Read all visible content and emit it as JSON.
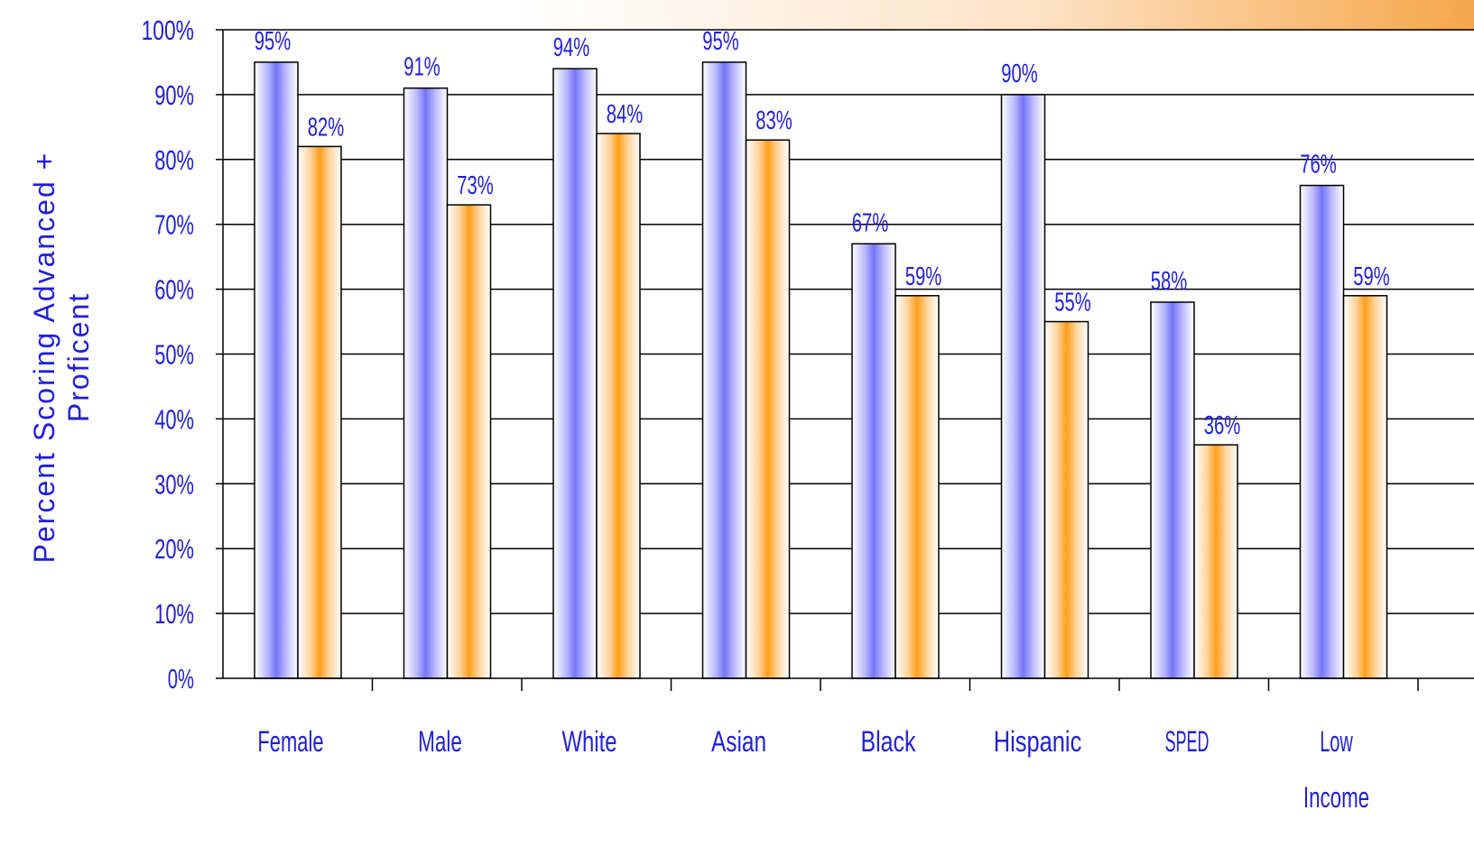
{
  "chart_data": {
    "type": "bar",
    "ylabel": "Percent Scoring Advanced + Proficent",
    "ylabel_lines": [
      "Percent Scoring Advanced +",
      "Proficent"
    ],
    "ylim": [
      0,
      100
    ],
    "yticks": [
      "0%",
      "10%",
      "20%",
      "30%",
      "40%",
      "50%",
      "60%",
      "70%",
      "80%",
      "90%",
      "100%"
    ],
    "grid": true,
    "categories": [
      [
        "Female"
      ],
      [
        "Male"
      ],
      [
        "White"
      ],
      [
        "Asian"
      ],
      [
        "Black"
      ],
      [
        "Hispanic"
      ],
      [
        "SPED"
      ],
      [
        "Low",
        "Income"
      ]
    ],
    "series": [
      {
        "values": [
          95,
          91,
          94,
          95,
          67,
          90,
          58,
          76
        ],
        "labels": [
          "95%",
          "91%",
          "94%",
          "95%",
          "67%",
          "90%",
          "58%",
          "76%"
        ],
        "color": "#7b7bff"
      },
      {
        "values": [
          82,
          73,
          84,
          83,
          59,
          55,
          36,
          59
        ],
        "labels": [
          "82%",
          "73%",
          "84%",
          "83%",
          "59%",
          "55%",
          "36%",
          "59%"
        ],
        "color": "#ffa020"
      }
    ]
  },
  "colors": {
    "text": "#1f1fdc",
    "banner": "#f6a64a"
  }
}
